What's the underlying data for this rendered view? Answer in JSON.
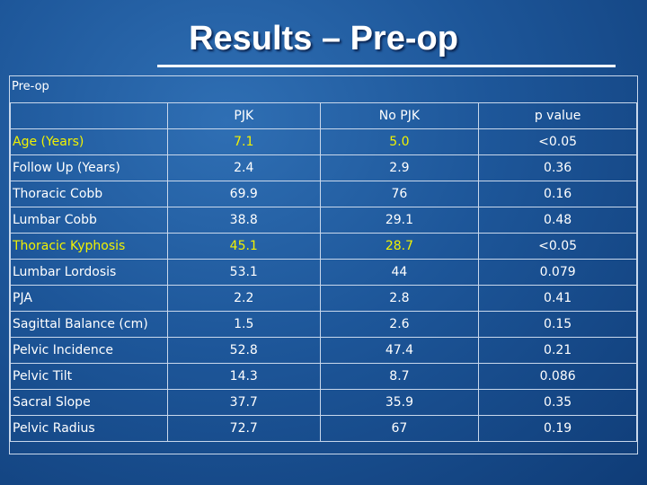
{
  "slide": {
    "title": "Results – Pre-op"
  },
  "table": {
    "caption": "Pre-op",
    "columns": [
      "",
      "PJK",
      "No PJK",
      "p value"
    ],
    "rows": [
      {
        "label": "Age (Years)",
        "pjk": "7.1",
        "no_pjk": "5.0",
        "p": "<0.05",
        "highlight": true
      },
      {
        "label": "Follow Up (Years)",
        "pjk": "2.4",
        "no_pjk": "2.9",
        "p": "0.36",
        "highlight": false
      },
      {
        "label": "Thoracic Cobb",
        "pjk": "69.9",
        "no_pjk": "76",
        "p": "0.16",
        "highlight": false
      },
      {
        "label": "Lumbar Cobb",
        "pjk": "38.8",
        "no_pjk": "29.1",
        "p": "0.48",
        "highlight": false
      },
      {
        "label": "Thoracic Kyphosis",
        "pjk": "45.1",
        "no_pjk": "28.7",
        "p": "<0.05",
        "highlight": true
      },
      {
        "label": "Lumbar Lordosis",
        "pjk": "53.1",
        "no_pjk": "44",
        "p": "0.079",
        "highlight": false
      },
      {
        "label": "PJA",
        "pjk": "2.2",
        "no_pjk": "2.8",
        "p": "0.41",
        "highlight": false
      },
      {
        "label": "Sagittal Balance (cm)",
        "pjk": "1.5",
        "no_pjk": "2.6",
        "p": "0.15",
        "highlight": false
      },
      {
        "label": "Pelvic Incidence",
        "pjk": "52.8",
        "no_pjk": "47.4",
        "p": "0.21",
        "highlight": false
      },
      {
        "label": "Pelvic Tilt",
        "pjk": "14.3",
        "no_pjk": "8.7",
        "p": "0.086",
        "highlight": false
      },
      {
        "label": "Sacral Slope",
        "pjk": "37.7",
        "no_pjk": "35.9",
        "p": "0.35",
        "highlight": false
      },
      {
        "label": "Pelvic Radius",
        "pjk": "72.7",
        "no_pjk": "67",
        "p": "0.19",
        "highlight": false
      }
    ]
  },
  "colors": {
    "background": "#1d5699",
    "text": "#ffffff",
    "highlight_text": "#f2f200",
    "grid": "#c9d8ec"
  }
}
